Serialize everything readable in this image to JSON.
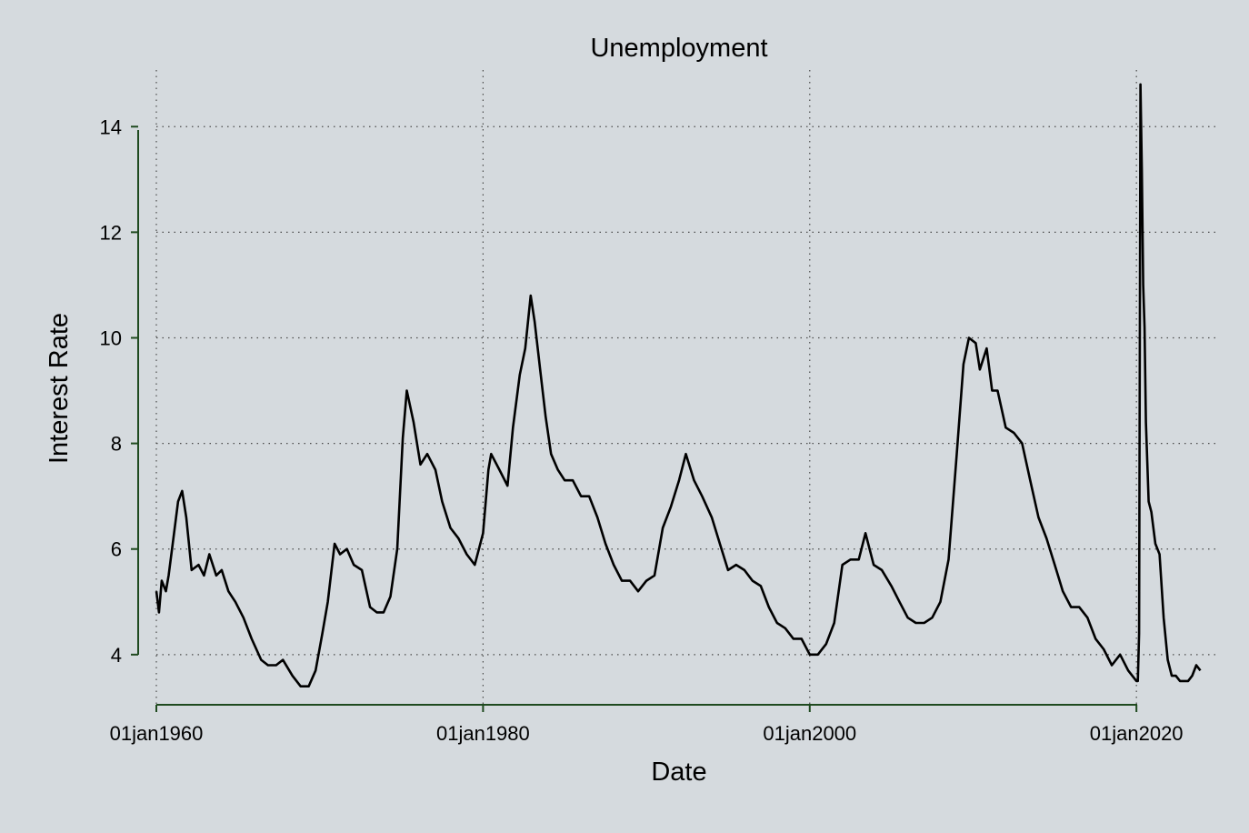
{
  "chart_data": {
    "type": "line",
    "title": "Unemployment",
    "xlabel": "Date",
    "ylabel": "Interest Rate",
    "x_tick_labels": [
      "01jan1960",
      "01jan1980",
      "01jan2000",
      "01jan2020"
    ],
    "x_tick_values": [
      "1960-01-01",
      "1980-01-01",
      "2000-01-01",
      "2020-01-01"
    ],
    "y_ticks": [
      4,
      6,
      8,
      10,
      12,
      14
    ],
    "xlim": [
      "1960-01-01",
      "2023-12-31"
    ],
    "ylim": [
      3.05,
      14.9
    ],
    "grid": true,
    "colors": {
      "background": "#d5dade",
      "line": "#000000",
      "axis": "#1f4a1f"
    },
    "series": [
      {
        "x": [
          "1960-01-01",
          "1960-03-01",
          "1960-05-01",
          "1960-08-01",
          "1960-10-01",
          "1961-01-01",
          "1961-05-01",
          "1961-08-01",
          "1961-11-01",
          "1962-03-01",
          "1962-08-01",
          "1962-12-01",
          "1963-04-01",
          "1963-09-01",
          "1964-01-01",
          "1964-06-01",
          "1964-11-01",
          "1965-05-01",
          "1965-11-01",
          "1966-06-01",
          "1966-11-01",
          "1967-05-01",
          "1967-10-01",
          "1968-05-01",
          "1968-11-01",
          "1969-05-01",
          "1969-10-01",
          "1970-03-01",
          "1970-07-01",
          "1970-12-01",
          "1971-04-01",
          "1971-09-01",
          "1972-02-01",
          "1972-08-01",
          "1973-02-01",
          "1973-07-01",
          "1973-12-01",
          "1974-05-01",
          "1974-10-01",
          "1975-02-01",
          "1975-05-01",
          "1975-10-01",
          "1976-03-01",
          "1976-08-01",
          "1977-02-01",
          "1977-07-01",
          "1978-01-01",
          "1978-07-01",
          "1979-01-01",
          "1979-07-01",
          "1980-01-01",
          "1980-05-01",
          "1980-07-01",
          "1981-01-01",
          "1981-07-01",
          "1981-11-01",
          "1982-04-01",
          "1982-08-01",
          "1982-12-01",
          "1983-03-01",
          "1983-07-01",
          "1983-11-01",
          "1984-03-01",
          "1984-08-01",
          "1985-01-01",
          "1985-07-01",
          "1986-01-01",
          "1986-07-01",
          "1987-01-01",
          "1987-07-01",
          "1988-01-01",
          "1988-07-01",
          "1989-01-01",
          "1989-07-01",
          "1990-01-01",
          "1990-07-01",
          "1991-01-01",
          "1991-07-01",
          "1992-01-01",
          "1992-06-01",
          "1992-12-01",
          "1993-06-01",
          "1994-01-01",
          "1994-07-01",
          "1995-01-01",
          "1995-07-01",
          "1996-01-01",
          "1996-07-01",
          "1997-01-01",
          "1997-07-01",
          "1998-01-01",
          "1998-07-01",
          "1999-01-01",
          "1999-07-01",
          "2000-01-01",
          "2000-07-01",
          "2001-01-01",
          "2001-07-01",
          "2002-01-01",
          "2002-07-01",
          "2003-01-01",
          "2003-06-01",
          "2003-12-01",
          "2004-06-01",
          "2005-01-01",
          "2005-07-01",
          "2006-01-01",
          "2006-07-01",
          "2007-01-01",
          "2007-07-01",
          "2008-01-01",
          "2008-07-01",
          "2009-01-01",
          "2009-06-01",
          "2009-10-01",
          "2010-03-01",
          "2010-06-01",
          "2010-11-01",
          "2011-03-01",
          "2011-07-01",
          "2012-01-01",
          "2012-07-01",
          "2013-01-01",
          "2013-07-01",
          "2014-01-01",
          "2014-07-01",
          "2015-01-01",
          "2015-07-01",
          "2016-01-01",
          "2016-07-01",
          "2017-01-01",
          "2017-07-01",
          "2018-01-01",
          "2018-07-01",
          "2019-01-01",
          "2019-07-01",
          "2020-01-01",
          "2020-02-01",
          "2020-03-01",
          "2020-04-01",
          "2020-05-01",
          "2020-06-01",
          "2020-07-01",
          "2020-08-01",
          "2020-10-01",
          "2020-12-01",
          "2021-03-01",
          "2021-06-01",
          "2021-09-01",
          "2021-12-01",
          "2022-03-01",
          "2022-06-01",
          "2022-09-01",
          "2022-12-01",
          "2023-03-01",
          "2023-06-01",
          "2023-09-01",
          "2023-12-01"
        ],
        "values": [
          5.2,
          4.8,
          5.4,
          5.2,
          5.5,
          6.1,
          6.9,
          7.1,
          6.6,
          5.6,
          5.7,
          5.5,
          5.9,
          5.5,
          5.6,
          5.2,
          5.0,
          4.7,
          4.3,
          3.9,
          3.8,
          3.8,
          3.9,
          3.6,
          3.4,
          3.4,
          3.7,
          4.4,
          5.0,
          6.1,
          5.9,
          6.0,
          5.7,
          5.6,
          4.9,
          4.8,
          4.8,
          5.1,
          6.0,
          8.1,
          9.0,
          8.4,
          7.6,
          7.8,
          7.5,
          6.9,
          6.4,
          6.2,
          5.9,
          5.7,
          6.3,
          7.5,
          7.8,
          7.5,
          7.2,
          8.3,
          9.3,
          9.8,
          10.8,
          10.3,
          9.4,
          8.5,
          7.8,
          7.5,
          7.3,
          7.3,
          7.0,
          7.0,
          6.6,
          6.1,
          5.7,
          5.4,
          5.4,
          5.2,
          5.4,
          5.5,
          6.4,
          6.8,
          7.3,
          7.8,
          7.3,
          7.0,
          6.6,
          6.1,
          5.6,
          5.7,
          5.6,
          5.4,
          5.3,
          4.9,
          4.6,
          4.5,
          4.3,
          4.3,
          4.0,
          4.0,
          4.2,
          4.6,
          5.7,
          5.8,
          5.8,
          6.3,
          5.7,
          5.6,
          5.3,
          5.0,
          4.7,
          4.6,
          4.6,
          4.7,
          5.0,
          5.8,
          7.8,
          9.5,
          10.0,
          9.9,
          9.4,
          9.8,
          9.0,
          9.0,
          8.3,
          8.2,
          8.0,
          7.3,
          6.6,
          6.2,
          5.7,
          5.2,
          4.9,
          4.9,
          4.7,
          4.3,
          4.1,
          3.8,
          4.0,
          3.7,
          3.5,
          3.5,
          4.4,
          14.8,
          13.2,
          11.0,
          10.2,
          8.4,
          6.9,
          6.7,
          6.1,
          5.9,
          4.7,
          3.9,
          3.6,
          3.6,
          3.5,
          3.5,
          3.5,
          3.6,
          3.8,
          3.7
        ]
      }
    ]
  }
}
